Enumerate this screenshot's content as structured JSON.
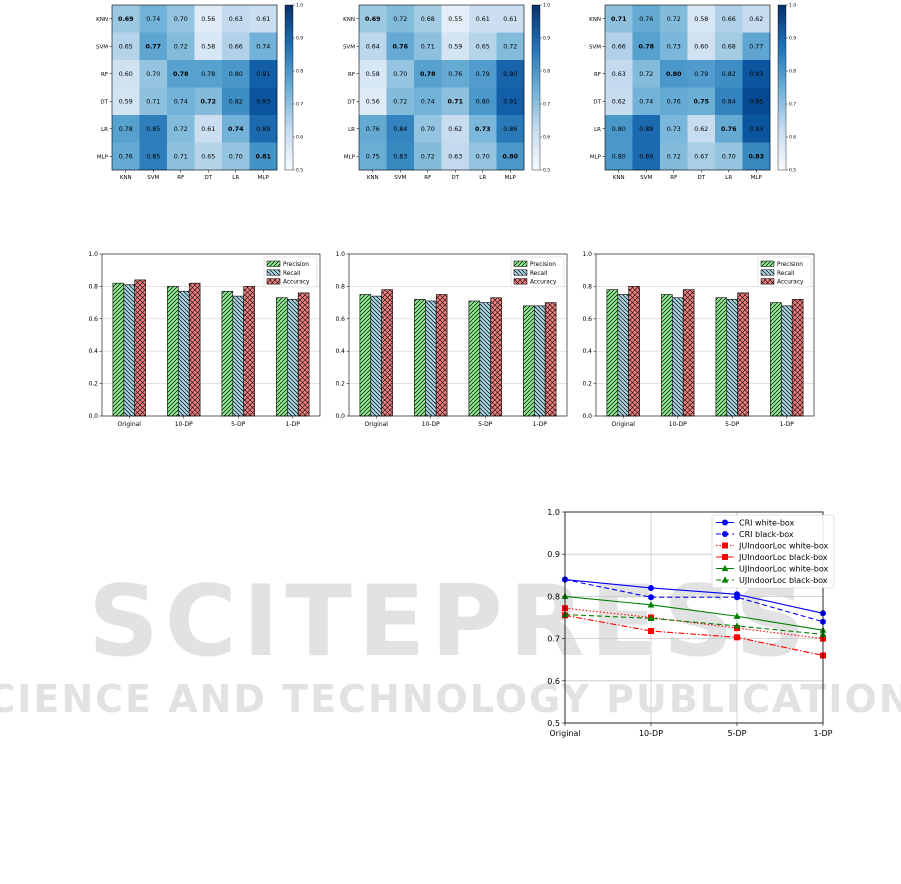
{
  "watermark": {
    "main": "SCITEPRESS",
    "sub": "SCIENCE AND TECHNOLOGY PUBLICATIONS",
    "color": "#d9d9d9"
  },
  "colors": {
    "precision": "#90ee90",
    "recall": "#add8e6",
    "accuracy": "#f08080",
    "cri": "#0000ff",
    "jujl": "#ff0000",
    "uji": "#008000",
    "highlight": "#cc0000"
  },
  "chart_data": [
    {
      "type": "heatmap",
      "id": "heatmap-1",
      "rows": [
        "KNN",
        "SVM",
        "RF",
        "DT",
        "LR",
        "MLP"
      ],
      "cols": [
        "KNN",
        "SVM",
        "RF",
        "DT",
        "LR",
        "MLP"
      ],
      "values": [
        [
          0.69,
          0.74,
          0.7,
          0.56,
          0.63,
          0.61
        ],
        [
          0.65,
          0.77,
          0.72,
          0.58,
          0.66,
          0.74
        ],
        [
          0.6,
          0.7,
          0.78,
          0.78,
          0.8,
          0.91
        ],
        [
          0.59,
          0.71,
          0.74,
          0.72,
          0.82,
          0.93
        ],
        [
          0.78,
          0.85,
          0.72,
          0.61,
          0.74,
          0.89
        ],
        [
          0.76,
          0.85,
          0.71,
          0.65,
          0.7,
          0.81
        ]
      ],
      "colorbar_ticks": [
        "1.0",
        "0.9",
        "0.8",
        "0.7",
        "0.6",
        "0.5"
      ],
      "vmin": 0.5,
      "vmax": 1.0
    },
    {
      "type": "heatmap",
      "id": "heatmap-2",
      "rows": [
        "KNN",
        "SVM",
        "RF",
        "DT",
        "LR",
        "MLP"
      ],
      "cols": [
        "KNN",
        "SVM",
        "RF",
        "DT",
        "LR",
        "MLP"
      ],
      "values": [
        [
          0.69,
          0.72,
          0.68,
          0.55,
          0.61,
          0.61
        ],
        [
          0.64,
          0.76,
          0.71,
          0.59,
          0.65,
          0.72
        ],
        [
          0.58,
          0.7,
          0.78,
          0.76,
          0.79,
          0.9
        ],
        [
          0.56,
          0.72,
          0.74,
          0.71,
          0.8,
          0.91
        ],
        [
          0.76,
          0.84,
          0.7,
          0.62,
          0.73,
          0.86
        ],
        [
          0.75,
          0.83,
          0.72,
          0.63,
          0.7,
          0.8
        ]
      ],
      "colorbar_ticks": [
        "1.0",
        "0.9",
        "0.8",
        "0.7",
        "0.6",
        "0.5"
      ],
      "vmin": 0.5,
      "vmax": 1.0
    },
    {
      "type": "heatmap",
      "id": "heatmap-3",
      "rows": [
        "KNN",
        "SVM",
        "RF",
        "DT",
        "LR",
        "MLP"
      ],
      "cols": [
        "KNN",
        "SVM",
        "RF",
        "DT",
        "LR",
        "MLP"
      ],
      "values": [
        [
          0.71,
          0.76,
          0.72,
          0.58,
          0.66,
          0.62
        ],
        [
          0.66,
          0.78,
          0.73,
          0.6,
          0.68,
          0.77
        ],
        [
          0.63,
          0.72,
          0.8,
          0.79,
          0.82,
          0.93
        ],
        [
          0.62,
          0.74,
          0.76,
          0.75,
          0.84,
          0.95
        ],
        [
          0.8,
          0.89,
          0.73,
          0.62,
          0.76,
          0.93
        ],
        [
          0.8,
          0.89,
          0.72,
          0.67,
          0.7,
          0.83
        ]
      ],
      "colorbar_ticks": [
        "1.0",
        "0.9",
        "0.8",
        "0.7",
        "0.6",
        "0.5"
      ],
      "vmin": 0.5,
      "vmax": 1.0
    },
    {
      "type": "bar",
      "id": "bar-1",
      "categories": [
        "Original",
        "10-DP",
        "5-DP",
        "1-DP"
      ],
      "series": [
        {
          "name": "Precision",
          "values": [
            0.82,
            0.8,
            0.77,
            0.73
          ]
        },
        {
          "name": "Recall",
          "values": [
            0.81,
            0.77,
            0.74,
            0.72
          ]
        },
        {
          "name": "Accuracy",
          "values": [
            0.84,
            0.82,
            0.8,
            0.76
          ]
        }
      ],
      "ylim": [
        0.0,
        1.0
      ],
      "yticks": [
        "0.0",
        "0.2",
        "0.4",
        "0.6",
        "0.8",
        "1.0"
      ],
      "legend": "top-right",
      "grid": "y"
    },
    {
      "type": "bar",
      "id": "bar-2",
      "categories": [
        "Original",
        "10-DP",
        "5-DP",
        "1-DP"
      ],
      "series": [
        {
          "name": "Precision",
          "values": [
            0.75,
            0.72,
            0.71,
            0.68
          ]
        },
        {
          "name": "Recall",
          "values": [
            0.74,
            0.71,
            0.7,
            0.68
          ]
        },
        {
          "name": "Accuracy",
          "values": [
            0.78,
            0.75,
            0.73,
            0.7
          ]
        }
      ],
      "ylim": [
        0.0,
        1.0
      ],
      "yticks": [
        "0.0",
        "0.2",
        "0.4",
        "0.6",
        "0.8",
        "1.0"
      ],
      "legend": "top-right",
      "grid": "y"
    },
    {
      "type": "bar",
      "id": "bar-3",
      "categories": [
        "Original",
        "10-DP",
        "5-DP",
        "1-DP"
      ],
      "series": [
        {
          "name": "Precision",
          "values": [
            0.78,
            0.75,
            0.73,
            0.7
          ]
        },
        {
          "name": "Recall",
          "values": [
            0.75,
            0.73,
            0.72,
            0.68
          ]
        },
        {
          "name": "Accuracy",
          "values": [
            0.8,
            0.78,
            0.76,
            0.72
          ]
        }
      ],
      "ylim": [
        0.0,
        1.0
      ],
      "yticks": [
        "0.0",
        "0.2",
        "0.4",
        "0.6",
        "0.8",
        "1.0"
      ],
      "legend": "top-right",
      "grid": "y"
    },
    {
      "type": "line",
      "id": "line-1",
      "categories": [
        "Original",
        "10-DP",
        "5-DP",
        "1-DP"
      ],
      "series": [
        {
          "name": "CRI white-box",
          "values": [
            0.84,
            0.82,
            0.805,
            0.76
          ],
          "color": "#0000ff",
          "dash": "solid",
          "marker": "circle"
        },
        {
          "name": "CRI black-box",
          "values": [
            0.84,
            0.798,
            0.798,
            0.74
          ],
          "color": "#0000ff",
          "dash": "dashed",
          "marker": "circle"
        },
        {
          "name": "JUIndoorLoc white-box",
          "values": [
            0.772,
            0.75,
            0.725,
            0.7
          ],
          "color": "#ff0000",
          "dash": "dotted",
          "marker": "square"
        },
        {
          "name": "JUIndoorLoc black-box",
          "values": [
            0.755,
            0.718,
            0.703,
            0.66
          ],
          "color": "#ff0000",
          "dash": "dashdot",
          "marker": "square"
        },
        {
          "name": "UJIndoorLoc white-box",
          "values": [
            0.8,
            0.78,
            0.753,
            0.72
          ],
          "color": "#008000",
          "dash": "solid",
          "marker": "triangle"
        },
        {
          "name": "UJIndoorLoc black-box",
          "values": [
            0.757,
            0.748,
            0.73,
            0.71
          ],
          "color": "#008000",
          "dash": "dashed",
          "marker": "triangle"
        }
      ],
      "ylim": [
        0.5,
        1.0
      ],
      "yticks": [
        "0.5",
        "0.6",
        "0.7",
        "0.8",
        "0.9",
        "1.0"
      ],
      "legend": "top-right",
      "grid": true
    }
  ]
}
